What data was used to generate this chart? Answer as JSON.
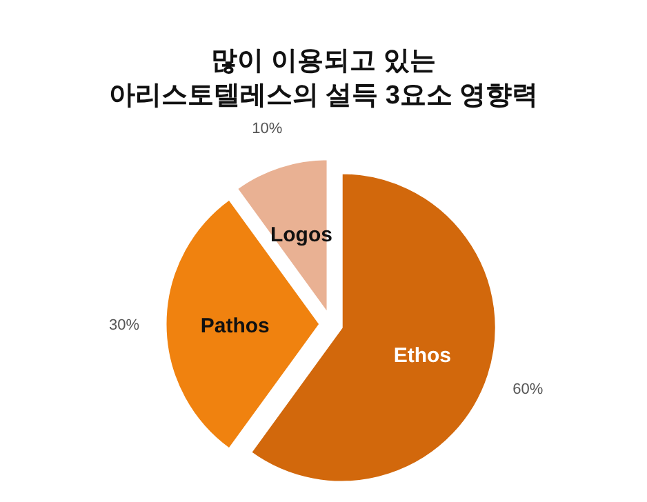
{
  "chart_data": {
    "type": "pie",
    "title": "많이 이용되고 있는\n아리스토텔레스의 설득 3요소 영향력",
    "categories": [
      "Ethos",
      "Pathos",
      "Logos"
    ],
    "values": [
      60,
      30,
      10
    ],
    "colors": [
      "#d2680c",
      "#f0820f",
      "#e9b193"
    ],
    "value_labels": [
      "60%",
      "30%",
      "10%"
    ]
  }
}
